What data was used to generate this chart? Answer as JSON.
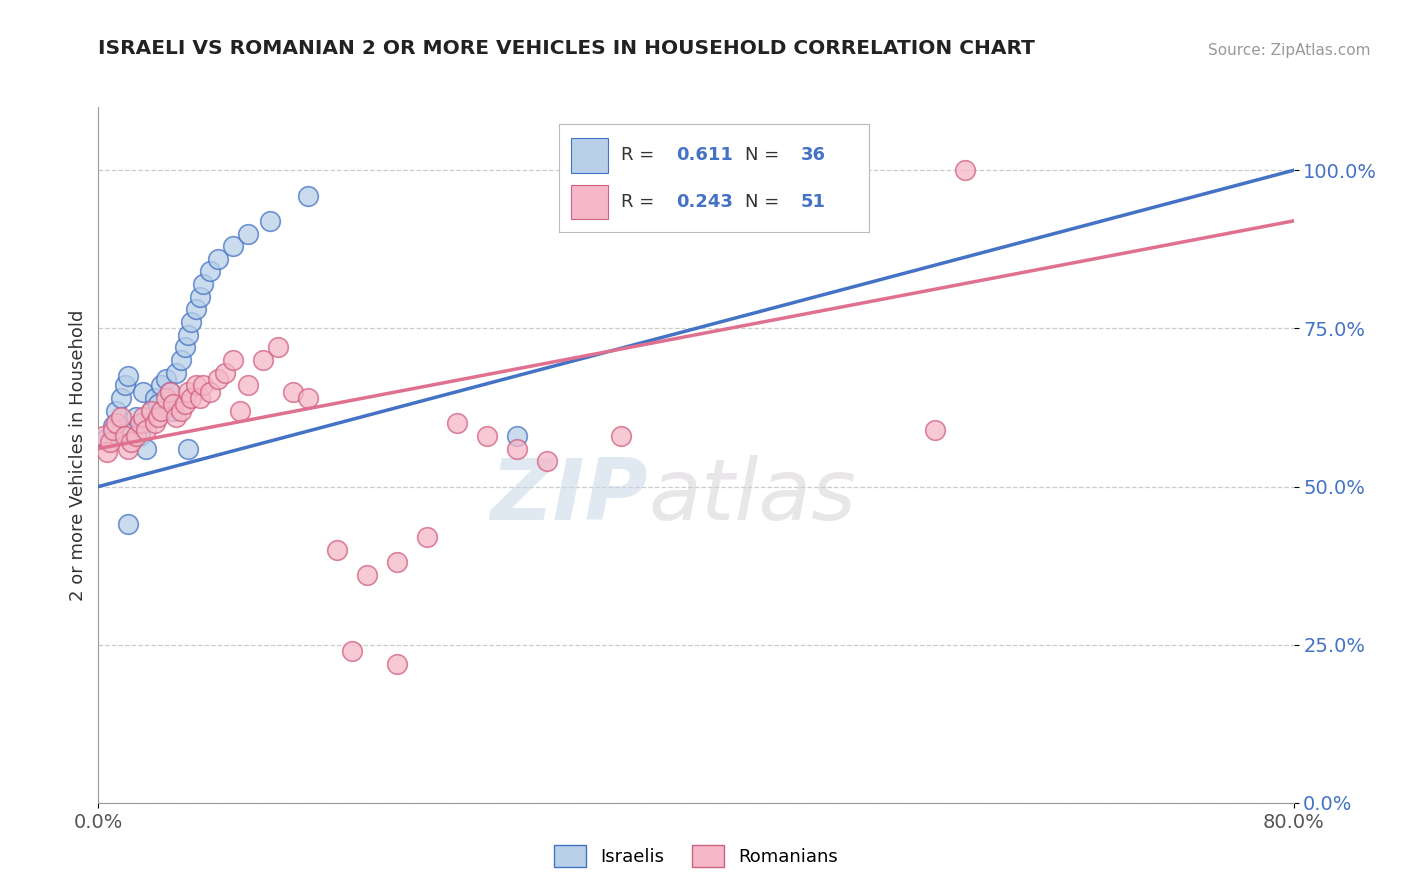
{
  "title": "ISRAELI VS ROMANIAN 2 OR MORE VEHICLES IN HOUSEHOLD CORRELATION CHART",
  "source": "Source: ZipAtlas.com",
  "ylabel": "2 or more Vehicles in Household",
  "xlim": [
    0.0,
    0.8
  ],
  "ylim": [
    0.0,
    1.1
  ],
  "ytick_labels": [
    "0.0%",
    "25.0%",
    "50.0%",
    "75.0%",
    "100.0%"
  ],
  "ytick_values": [
    0.0,
    0.25,
    0.5,
    0.75,
    1.0
  ],
  "legend_israeli_R": "0.611",
  "legend_israeli_N": "36",
  "legend_romanian_R": "0.243",
  "legend_romanian_N": "51",
  "israeli_color": "#b8d0e8",
  "romanian_color": "#f5b8c8",
  "trendline_israeli_color": "#4472c4",
  "trendline_romanian_color": "#e07090",
  "watermark_zip": "ZIP",
  "watermark_atlas": "atlas",
  "israelis_x": [
    0.005,
    0.01,
    0.012,
    0.015,
    0.018,
    0.02,
    0.022,
    0.025,
    0.028,
    0.03,
    0.03,
    0.032,
    0.035,
    0.038,
    0.04,
    0.042,
    0.045,
    0.048,
    0.05,
    0.052,
    0.055,
    0.058,
    0.06,
    0.062,
    0.065,
    0.068,
    0.07,
    0.075,
    0.08,
    0.09,
    0.1,
    0.115,
    0.14,
    0.02,
    0.28,
    0.06
  ],
  "israelis_y": [
    0.575,
    0.595,
    0.62,
    0.64,
    0.66,
    0.675,
    0.59,
    0.61,
    0.58,
    0.6,
    0.65,
    0.56,
    0.62,
    0.64,
    0.63,
    0.66,
    0.67,
    0.65,
    0.62,
    0.68,
    0.7,
    0.72,
    0.74,
    0.76,
    0.78,
    0.8,
    0.82,
    0.84,
    0.86,
    0.88,
    0.9,
    0.92,
    0.96,
    0.44,
    0.58,
    0.56
  ],
  "romanians_x": [
    0.003,
    0.006,
    0.008,
    0.01,
    0.012,
    0.015,
    0.018,
    0.02,
    0.022,
    0.025,
    0.028,
    0.03,
    0.032,
    0.035,
    0.038,
    0.04,
    0.042,
    0.045,
    0.048,
    0.05,
    0.052,
    0.055,
    0.058,
    0.06,
    0.062,
    0.065,
    0.068,
    0.07,
    0.075,
    0.08,
    0.085,
    0.09,
    0.095,
    0.1,
    0.11,
    0.12,
    0.13,
    0.14,
    0.16,
    0.18,
    0.2,
    0.22,
    0.24,
    0.26,
    0.28,
    0.3,
    0.35,
    0.17,
    0.2,
    0.56,
    0.58
  ],
  "romanians_y": [
    0.58,
    0.555,
    0.57,
    0.59,
    0.6,
    0.61,
    0.58,
    0.56,
    0.57,
    0.58,
    0.6,
    0.61,
    0.59,
    0.62,
    0.6,
    0.61,
    0.62,
    0.64,
    0.65,
    0.63,
    0.61,
    0.62,
    0.63,
    0.65,
    0.64,
    0.66,
    0.64,
    0.66,
    0.65,
    0.67,
    0.68,
    0.7,
    0.62,
    0.66,
    0.7,
    0.72,
    0.65,
    0.64,
    0.4,
    0.36,
    0.38,
    0.42,
    0.6,
    0.58,
    0.56,
    0.54,
    0.58,
    0.24,
    0.22,
    0.59,
    1.0
  ],
  "trendline_isr_x0": 0.0,
  "trendline_isr_y0": 0.5,
  "trendline_isr_x1": 0.8,
  "trendline_isr_y1": 1.0,
  "trendline_rom_x0": 0.0,
  "trendline_rom_y0": 0.56,
  "trendline_rom_x1": 0.8,
  "trendline_rom_y1": 0.92
}
